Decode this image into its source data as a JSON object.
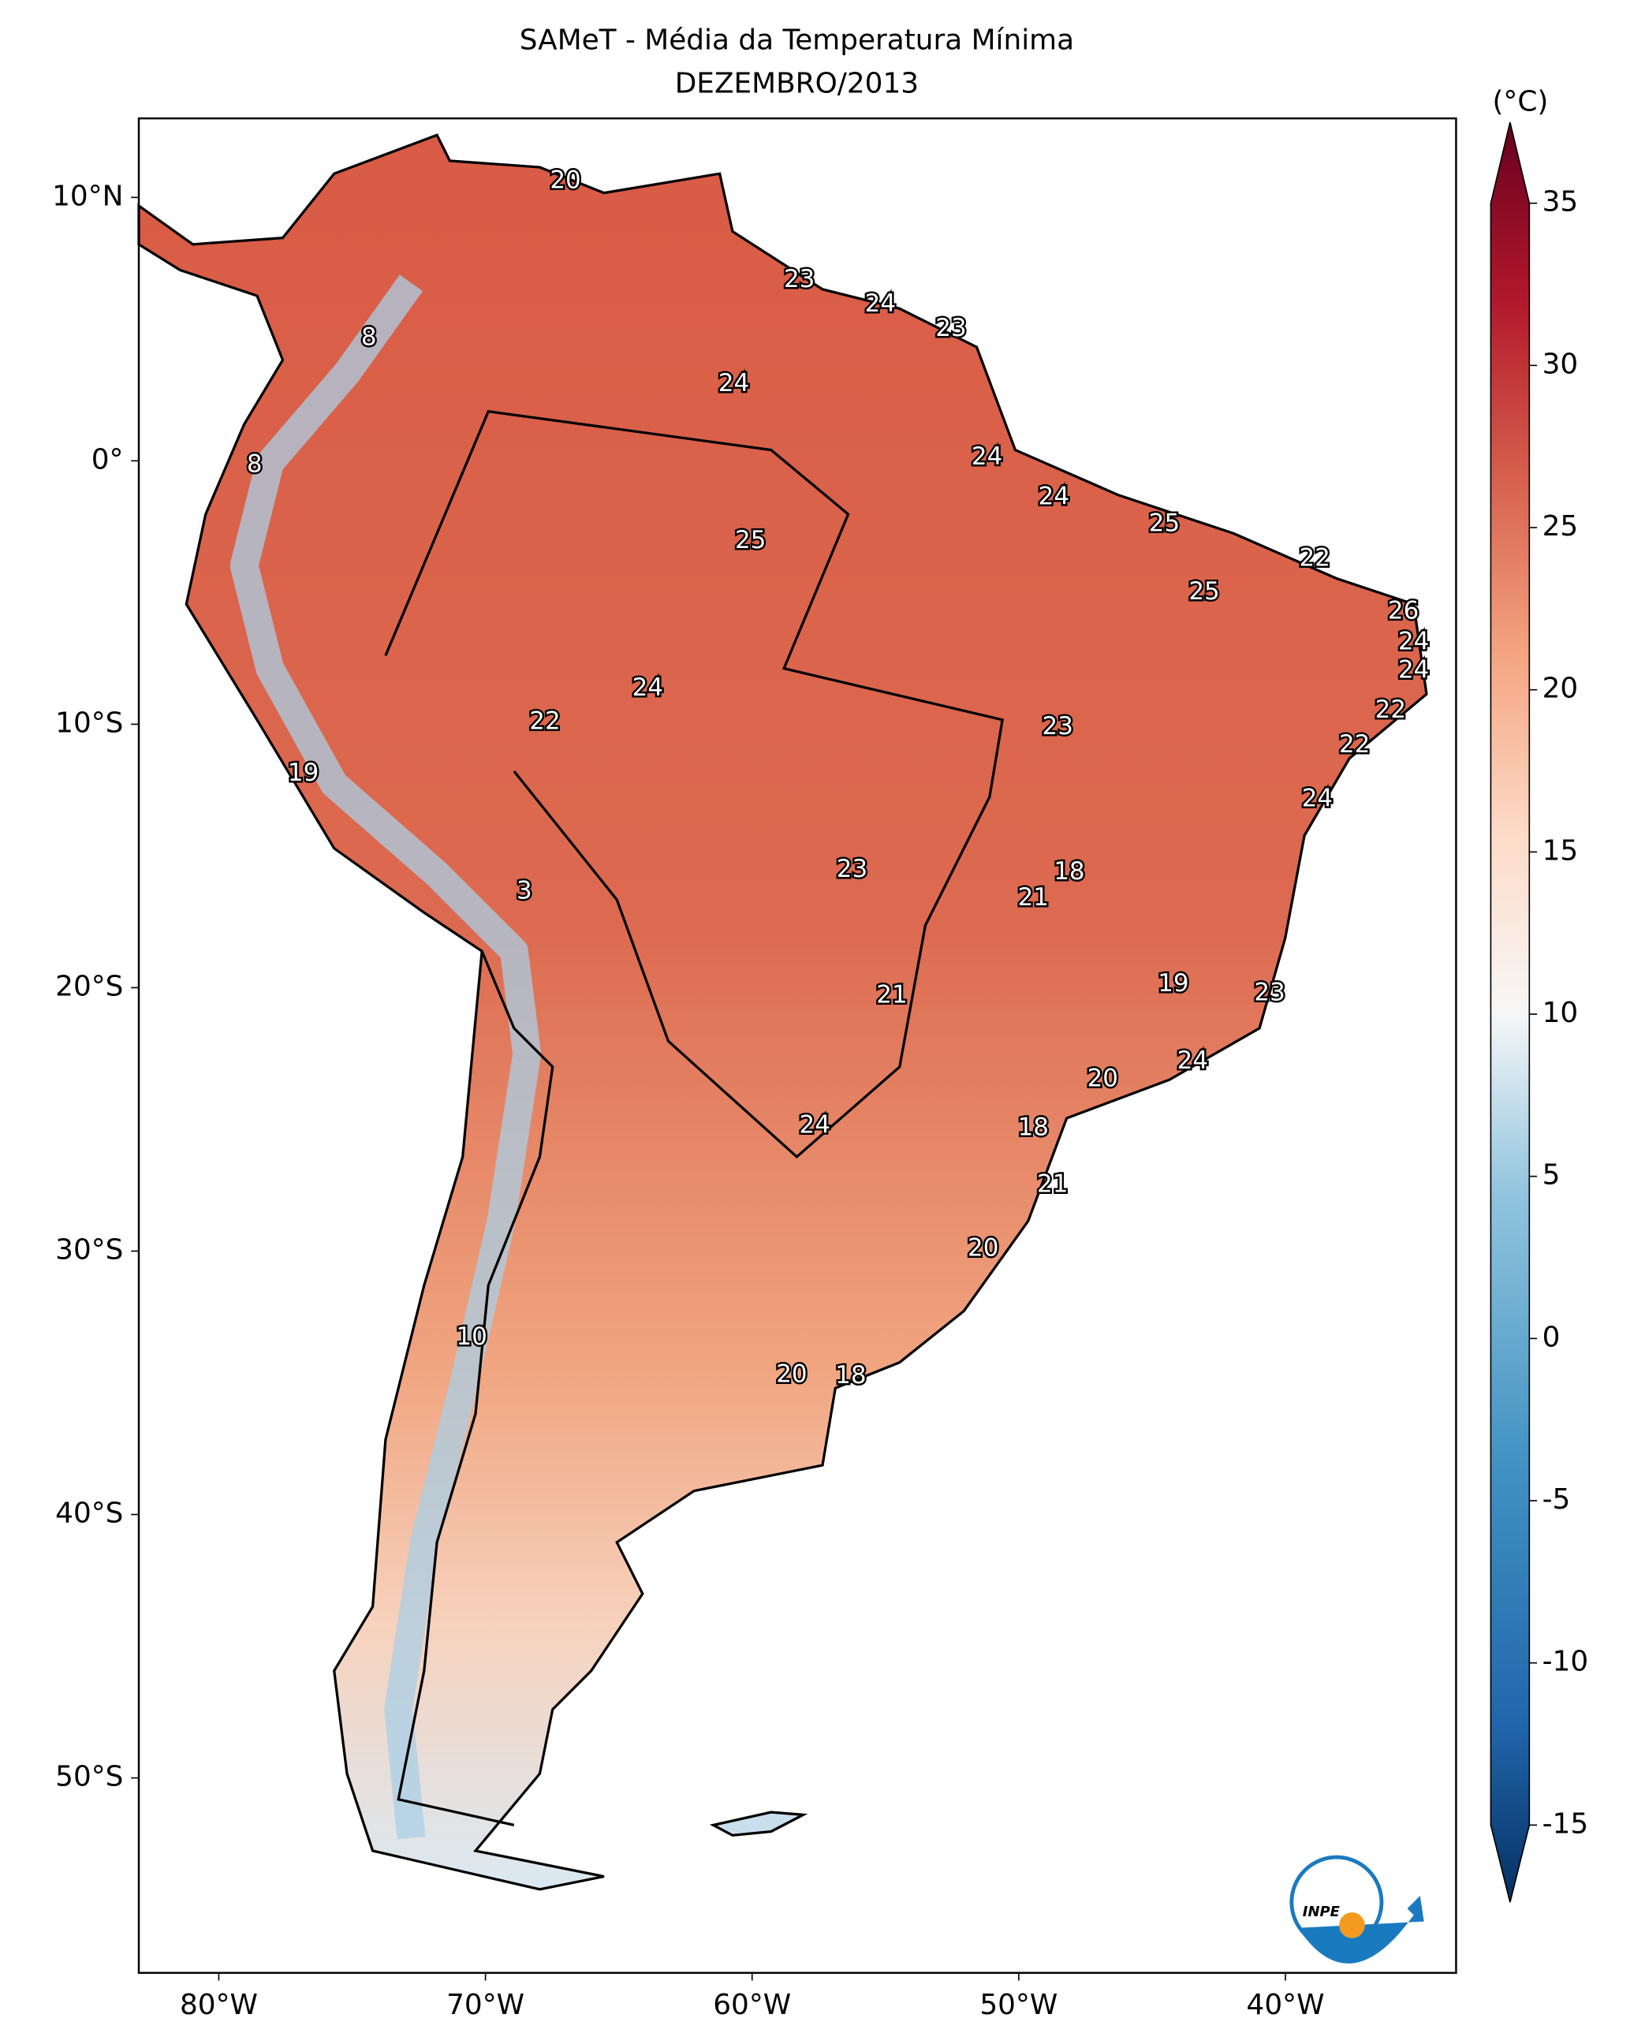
{
  "chart_data": {
    "type": "map",
    "title": "SAMeT - Média da Temperatura Mínima",
    "subtitle": "DEZEMBRO/2013",
    "xlim": [
      -83,
      -33.6
    ],
    "ylim": [
      -57.4,
      13
    ],
    "xticks": [
      {
        "value": -80,
        "label": "80°W"
      },
      {
        "value": -70,
        "label": "70°W"
      },
      {
        "value": -60,
        "label": "60°W"
      },
      {
        "value": -50,
        "label": "50°W"
      },
      {
        "value": -40,
        "label": "40°W"
      }
    ],
    "yticks": [
      {
        "value": 10,
        "label": "10°N"
      },
      {
        "value": 0,
        "label": "0°"
      },
      {
        "value": -10,
        "label": "10°S"
      },
      {
        "value": -20,
        "label": "20°S"
      },
      {
        "value": -30,
        "label": "30°S"
      },
      {
        "value": -40,
        "label": "40°S"
      },
      {
        "value": -50,
        "label": "50°S"
      }
    ],
    "colorbar": {
      "label": "(°C)",
      "lim": [
        -15,
        35
      ],
      "ticks": [
        35,
        30,
        25,
        20,
        15,
        10,
        5,
        0,
        -5,
        -10,
        -15
      ]
    },
    "station_labels": [
      20,
      8,
      8,
      23,
      24,
      23,
      24,
      24,
      24,
      25,
      25,
      22,
      25,
      26,
      24,
      24,
      22,
      24,
      22,
      23,
      22,
      19,
      24,
      23,
      18,
      3,
      21,
      19,
      21,
      23,
      24,
      20,
      24,
      18,
      21,
      20,
      10,
      20,
      18
    ],
    "logo_text": "INPE"
  }
}
